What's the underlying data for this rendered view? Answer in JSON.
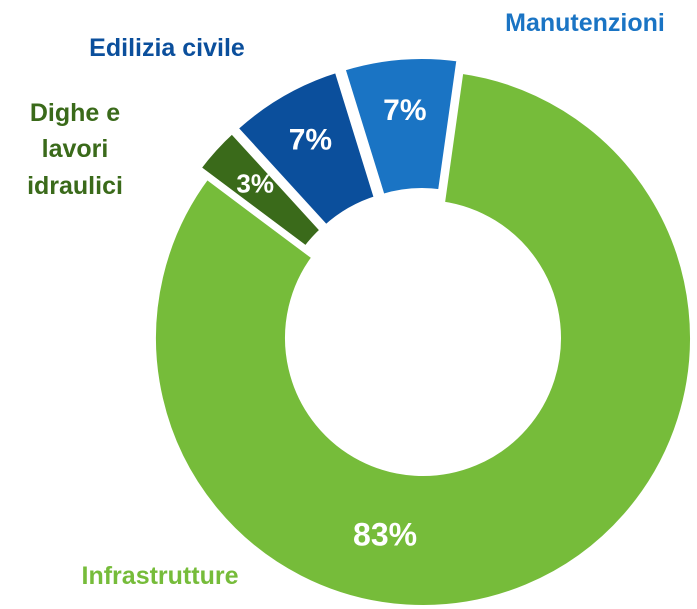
{
  "chart_data": {
    "type": "donut",
    "categories": [
      "Infrastrutture",
      "Dighe e lavori idraulici",
      "Edilizia civile",
      "Manutenzioni"
    ],
    "values": [
      83,
      3,
      7,
      7
    ],
    "value_labels": [
      "83%",
      "3%",
      "7%",
      "7%"
    ],
    "colors": [
      "#76bc3a",
      "#3a6a1a",
      "#0b4f9c",
      "#1a74c4"
    ]
  }
}
